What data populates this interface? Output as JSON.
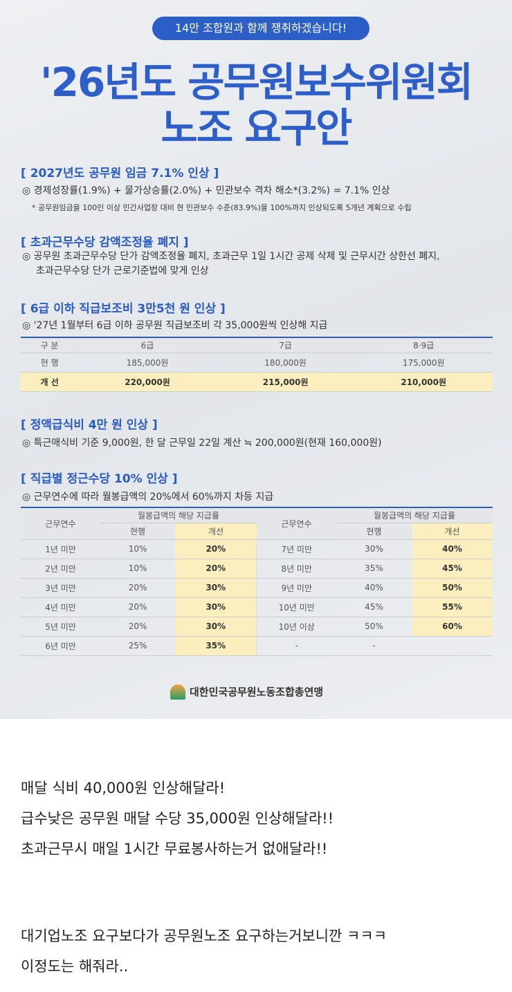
{
  "poster": {
    "banner": "14만 조합원과 함께 쟁취하겠습니다!",
    "title_lines": [
      "'26년도 공무원보수위원회",
      "노조 요구안"
    ],
    "sections": [
      {
        "heading": "[ 2027년도 공무원 임금 7.1% 인상 ]",
        "items": [
          "◎ 경제성장률(1.9%) + 물가상승률(2.0%) + 민관보수 격차 해소*(3.2%) = 7.1% 인상"
        ],
        "note": "* 공무원임금을 100인 이상 민간사업장 대비 현 민관보수 수준(83.9%)을 100%까지 인상되도록 5개년 계획으로 수립"
      },
      {
        "heading": "[ 초과근무수당 감액조정율 폐지 ]",
        "items": [
          "◎ 공무원 초과근무수당 단가 감액조정율 폐지, 초과근무 1일 1시간 공제 삭제 및 근무시간 상한선 폐지,",
          "초과근무수당 단가 근로기준법에 맞게 인상"
        ]
      },
      {
        "heading": "[ 6급 이하 직급보조비 3만5천 원 인상 ]",
        "items": [
          "◎ '27년 1월부터 6급 이하 공무원 직급보조비 각 35,000원씩 인상해 지급"
        ]
      },
      {
        "heading": "[ 정액급식비 4만 원 인상 ]",
        "items": [
          "◎ 특근매식비 기준 9,000원, 한 달 근무일 22일 계산 ≒ 200,000원(현재 160,000원)"
        ]
      },
      {
        "heading": "[ 직급별 정근수당 10% 인상 ]",
        "items": [
          "◎ 근무연수에 따라 월봉급액의 20%에서 60%까지 차등 지급"
        ]
      }
    ],
    "table1": {
      "header": [
        "구 분",
        "6급",
        "7급",
        "8·9급"
      ],
      "rows": [
        [
          "현 행",
          "185,000원",
          "180,000원",
          "175,000원"
        ],
        [
          "개 선",
          "220,000원",
          "215,000원",
          "210,000원"
        ]
      ]
    },
    "table2": {
      "col_years": "근무연수",
      "col_rate": "월봉급액의 해당 지급률",
      "col_now": "현행",
      "col_new": "개선",
      "rows": [
        [
          "1년 미만",
          "10%",
          "20%",
          "7년 미만",
          "30%",
          "40%"
        ],
        [
          "2년 미만",
          "10%",
          "20%",
          "8년 미만",
          "35%",
          "45%"
        ],
        [
          "3년 미만",
          "20%",
          "30%",
          "9년 미만",
          "40%",
          "50%"
        ],
        [
          "4년 미만",
          "20%",
          "30%",
          "10년 미만",
          "45%",
          "55%"
        ],
        [
          "5년 미만",
          "20%",
          "30%",
          "10년 이상",
          "50%",
          "60%"
        ],
        [
          "6년 미만",
          "25%",
          "35%",
          "-",
          "-"
        ]
      ]
    },
    "logo": "대한민국공무원노동조합총연맹"
  },
  "post": {
    "lines": [
      "매달 식비 40,000원 인상해달라!",
      "급수낮은 공무원 매달 수당 35,000원 인상해달라!!",
      "초과근무시 매일 1시간 무료봉사하는거 없애달라!!",
      "대기업노조 요구보다가 공무원노조 요구하는거보니깐 ㅋㅋㅋ",
      "이정도는 해줘라.."
    ]
  }
}
